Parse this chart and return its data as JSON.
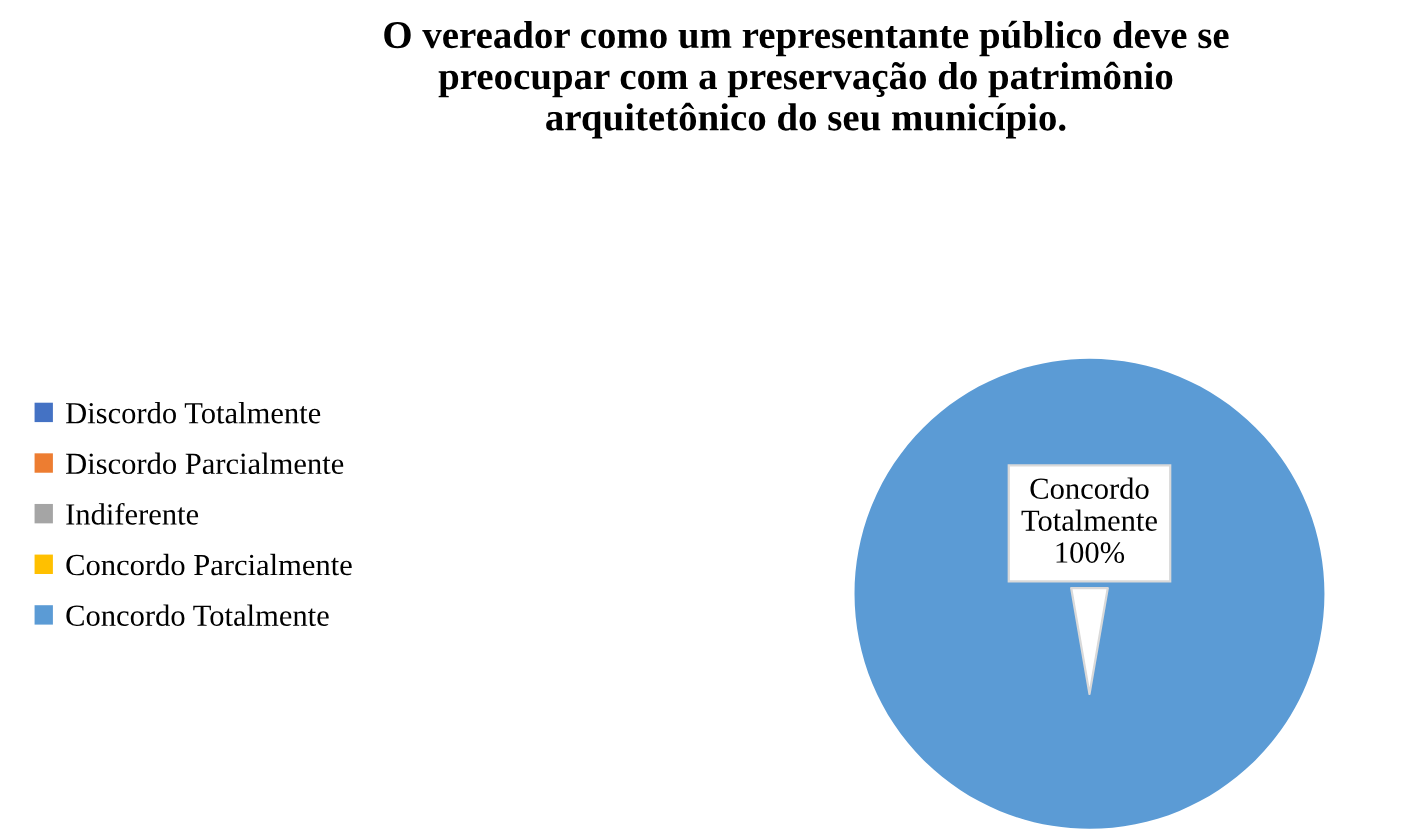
{
  "chart_data": {
    "type": "pie",
    "title": "O vereador como um representante público deve se\npreocupar com a preservação do patrimônio\narquitetônico do seu município.",
    "categories": [
      "Discordo Totalmente",
      "Discordo Parcialmente",
      "Indiferente",
      "Concordo Parcialmente",
      "Concordo Totalmente"
    ],
    "values": [
      0,
      0,
      0,
      0,
      100
    ],
    "colors": [
      "#4472c4",
      "#ed7d31",
      "#a5a5a5",
      "#ffc000",
      "#5b9bd5"
    ],
    "value_labels": [
      null,
      null,
      null,
      null,
      "Concordo\nTotalmente\n100%"
    ],
    "legend": "left"
  }
}
